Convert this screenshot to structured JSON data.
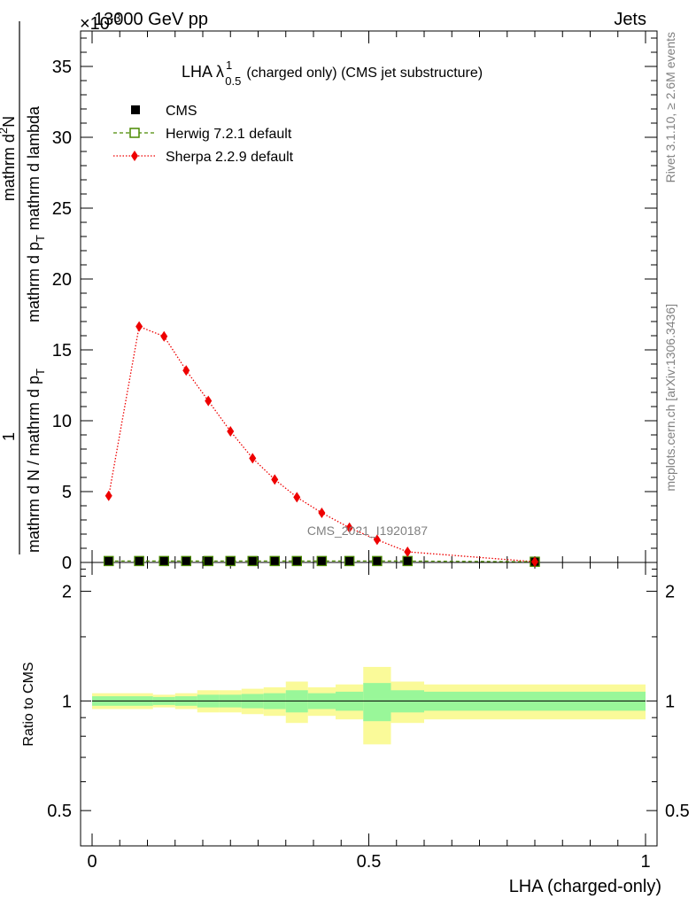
{
  "header": {
    "energy": "13000 GeV pp",
    "process": "Jets"
  },
  "side_labels": {
    "rivet": "Rivet 3.1.10, ≥ 2.6M events",
    "mcplots": "mcplots.cern.ch [arXiv:1306.3436]"
  },
  "watermark": "CMS_2021_I1920187",
  "chart_data": [
    {
      "type": "line",
      "title": "LHA λ",
      "title_sup": "1",
      "title_sub": "0.5",
      "title_rest": "(charged only) (CMS jet substructure)",
      "ylabel": "1 / (mathrm d N / mathrm d p_T) · mathrm d²N / (mathrm d p_T mathrm d lambda)",
      "ylabel_parts": {
        "numerator": "1",
        "denominator": "mathrm d N / mathrm d p",
        "denominator_sub": "T",
        "frac2_num": "mathrm d",
        "frac2_num_sup": "2",
        "frac2_num_rest": "N",
        "frac2_den": "mathrm d p",
        "frac2_den_sub": "T",
        "frac2_den_rest": " mathrm d lambda"
      },
      "y_multiplier": "×10",
      "y_multiplier_exp": "-3",
      "xlim": [
        0,
        1
      ],
      "ylim": [
        0,
        37.5
      ],
      "yticks": [
        0,
        5,
        10,
        15,
        20,
        25,
        30,
        35
      ],
      "ytick_labels": [
        "0",
        "5",
        "10",
        "15",
        "20",
        "25",
        "30",
        "35"
      ],
      "legend_position": "top-left",
      "series": [
        {
          "name": "CMS",
          "color": "#000000",
          "marker": "filled-square",
          "x": [
            0.03,
            0.085,
            0.13,
            0.17,
            0.21,
            0.25,
            0.29,
            0.33,
            0.37,
            0.415,
            0.465,
            0.515,
            0.57,
            0.8
          ],
          "y": [
            0.1,
            0.1,
            0.1,
            0.1,
            0.1,
            0.1,
            0.1,
            0.1,
            0.1,
            0.1,
            0.1,
            0.1,
            0.1,
            0.05
          ]
        },
        {
          "name": "Herwig 7.2.1 default",
          "color": "#4a8a00",
          "marker": "open-square",
          "line": "dashed",
          "x": [
            0.03,
            0.085,
            0.13,
            0.17,
            0.21,
            0.25,
            0.29,
            0.33,
            0.37,
            0.415,
            0.465,
            0.515,
            0.57,
            0.8
          ],
          "y": [
            0.1,
            0.1,
            0.1,
            0.1,
            0.1,
            0.1,
            0.1,
            0.1,
            0.1,
            0.1,
            0.1,
            0.1,
            0.1,
            0.05
          ]
        },
        {
          "name": "Sherpa 2.2.9 default",
          "color": "#ee0000",
          "marker": "diamond",
          "line": "dotted",
          "x": [
            0.03,
            0.085,
            0.13,
            0.17,
            0.21,
            0.25,
            0.29,
            0.33,
            0.37,
            0.415,
            0.465,
            0.515,
            0.57,
            0.8
          ],
          "y": [
            4.7,
            16.65,
            15.95,
            13.55,
            11.4,
            9.25,
            7.35,
            5.85,
            4.6,
            3.5,
            2.45,
            1.6,
            0.75,
            0.05
          ]
        }
      ]
    },
    {
      "type": "area",
      "ylabel": "Ratio to CMS",
      "xlabel": "LHA (charged-only)",
      "xlim": [
        0,
        1
      ],
      "ylim": [
        0.4,
        2.4
      ],
      "y_scale": "log",
      "yticks": [
        0.5,
        1,
        2
      ],
      "ytick_labels": [
        "0.5",
        "1",
        "2"
      ],
      "xticks": [
        0,
        0.5,
        1
      ],
      "xtick_labels": [
        "0",
        "0.5",
        "1"
      ],
      "reference_line": 1,
      "bins": [
        {
          "x0": 0.0,
          "x1": 0.06,
          "inner": [
            0.97,
            1.03
          ],
          "outer": [
            0.95,
            1.05
          ]
        },
        {
          "x0": 0.06,
          "x1": 0.11,
          "inner": [
            0.97,
            1.03
          ],
          "outer": [
            0.95,
            1.05
          ]
        },
        {
          "x0": 0.11,
          "x1": 0.15,
          "inner": [
            0.975,
            1.025
          ],
          "outer": [
            0.96,
            1.04
          ]
        },
        {
          "x0": 0.15,
          "x1": 0.19,
          "inner": [
            0.97,
            1.03
          ],
          "outer": [
            0.95,
            1.05
          ]
        },
        {
          "x0": 0.19,
          "x1": 0.23,
          "inner": [
            0.96,
            1.04
          ],
          "outer": [
            0.93,
            1.07
          ]
        },
        {
          "x0": 0.23,
          "x1": 0.27,
          "inner": [
            0.96,
            1.04
          ],
          "outer": [
            0.93,
            1.07
          ]
        },
        {
          "x0": 0.27,
          "x1": 0.31,
          "inner": [
            0.955,
            1.045
          ],
          "outer": [
            0.92,
            1.08
          ]
        },
        {
          "x0": 0.31,
          "x1": 0.35,
          "inner": [
            0.95,
            1.05
          ],
          "outer": [
            0.91,
            1.09
          ]
        },
        {
          "x0": 0.35,
          "x1": 0.39,
          "inner": [
            0.93,
            1.07
          ],
          "outer": [
            0.87,
            1.13
          ]
        },
        {
          "x0": 0.39,
          "x1": 0.44,
          "inner": [
            0.95,
            1.05
          ],
          "outer": [
            0.91,
            1.09
          ]
        },
        {
          "x0": 0.44,
          "x1": 0.49,
          "inner": [
            0.94,
            1.06
          ],
          "outer": [
            0.89,
            1.11
          ]
        },
        {
          "x0": 0.49,
          "x1": 0.54,
          "inner": [
            0.88,
            1.12
          ],
          "outer": [
            0.76,
            1.24
          ]
        },
        {
          "x0": 0.54,
          "x1": 0.6,
          "inner": [
            0.93,
            1.07
          ],
          "outer": [
            0.87,
            1.13
          ]
        },
        {
          "x0": 0.6,
          "x1": 1.0,
          "inner": [
            0.94,
            1.06
          ],
          "outer": [
            0.89,
            1.11
          ]
        }
      ],
      "colors": {
        "inner": "#99f799",
        "outer": "#fafa99",
        "line": "#000000"
      }
    }
  ]
}
